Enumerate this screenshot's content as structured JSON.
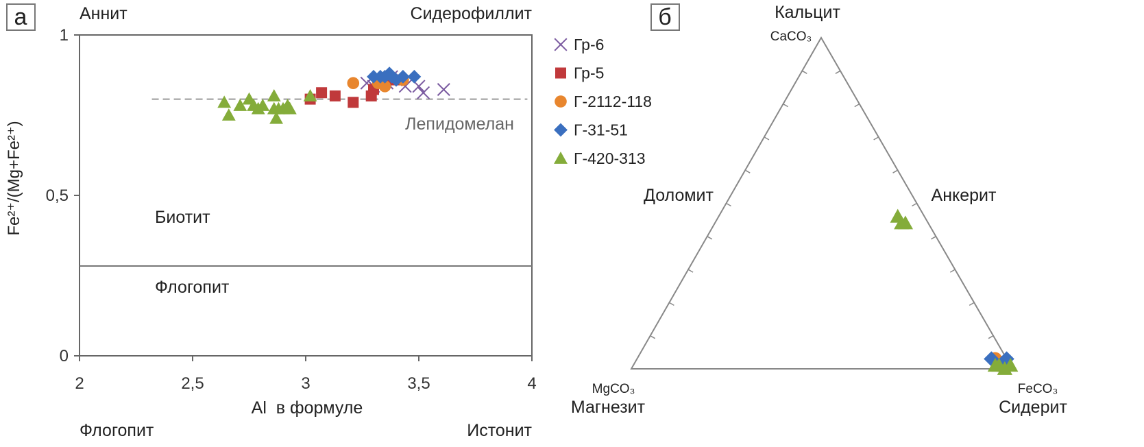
{
  "colors": {
    "gr6": "#7a5aa0",
    "gr5": "#c0393b",
    "g2112": "#e8862e",
    "g3151": "#3a6fbf",
    "g420": "#84ac3a",
    "axis": "#777777",
    "dashed": "#999999"
  },
  "panel_a": {
    "label": "а",
    "corner_top_left": "Аннит",
    "corner_top_right": "Сидерофиллит",
    "corner_bottom_left": "Флогопит",
    "corner_bottom_right": "Истонит",
    "field_lepidomelan": "Лепидомелан",
    "field_biotite": "Биотит",
    "field_phlogopite": "Флогопит"
  },
  "panel_b": {
    "label": "б",
    "top_name": "Кальцит",
    "top_formula": "CaCO₃",
    "left_formula": "MgCO₃",
    "left_name": "Магнезит",
    "right_formula": "FeCO₃",
    "right_name": "Сидерит",
    "side_left": "Доломит",
    "side_right": "Анкерит"
  },
  "legend": [
    {
      "name": "Гр-6",
      "marker": "x",
      "color_key": "gr6"
    },
    {
      "name": "Гр-5",
      "marker": "square",
      "color_key": "gr5"
    },
    {
      "name": "Г-2112-118",
      "marker": "circle",
      "color_key": "g2112"
    },
    {
      "name": "Г-31-51",
      "marker": "diamond",
      "color_key": "g3151"
    },
    {
      "name": "Г-420-313",
      "marker": "triangle",
      "color_key": "g420"
    }
  ],
  "chart_data": [
    {
      "type": "scatter",
      "xlabel": "Al  в формуле",
      "ylabel": "Fe²⁺/(Mg+Fe²⁺)",
      "xlim": [
        2,
        4
      ],
      "ylim": [
        0,
        1
      ],
      "x_ticks": [
        "2",
        "2,5",
        "3",
        "3,5",
        "4"
      ],
      "y_ticks": [
        "0",
        "0,5",
        "1"
      ],
      "reference_lines": [
        {
          "style": "dashed",
          "y": 0.8,
          "x_from": 2.32,
          "x_to": 3.98
        },
        {
          "style": "solid",
          "y": 0.28,
          "x_from": 2,
          "x_to": 4
        }
      ],
      "series": [
        {
          "name": "Гр-6",
          "marker": "x",
          "points": [
            [
              3.27,
              0.85
            ],
            [
              3.3,
              0.84
            ],
            [
              3.33,
              0.86
            ],
            [
              3.36,
              0.85
            ],
            [
              3.38,
              0.87
            ],
            [
              3.4,
              0.86
            ],
            [
              3.44,
              0.84
            ],
            [
              3.5,
              0.84
            ],
            [
              3.52,
              0.82
            ],
            [
              3.61,
              0.83
            ]
          ]
        },
        {
          "name": "Гр-5",
          "marker": "square",
          "points": [
            [
              3.02,
              0.8
            ],
            [
              3.07,
              0.82
            ],
            [
              3.13,
              0.81
            ],
            [
              3.21,
              0.79
            ],
            [
              3.29,
              0.81
            ],
            [
              3.3,
              0.83
            ],
            [
              3.37,
              0.86
            ],
            [
              3.41,
              0.86
            ]
          ]
        },
        {
          "name": "Г-2112-118",
          "marker": "circle",
          "points": [
            [
              3.21,
              0.85
            ],
            [
              3.32,
              0.85
            ],
            [
              3.35,
              0.84
            ],
            [
              3.43,
              0.86
            ]
          ]
        },
        {
          "name": "Г-31-51",
          "marker": "diamond",
          "points": [
            [
              3.3,
              0.87
            ],
            [
              3.33,
              0.87
            ],
            [
              3.35,
              0.87
            ],
            [
              3.37,
              0.88
            ],
            [
              3.38,
              0.87
            ],
            [
              3.4,
              0.86
            ],
            [
              3.43,
              0.87
            ],
            [
              3.48,
              0.87
            ]
          ]
        },
        {
          "name": "Г-420-313",
          "marker": "triangle",
          "points": [
            [
              2.64,
              0.79
            ],
            [
              2.66,
              0.75
            ],
            [
              2.71,
              0.78
            ],
            [
              2.75,
              0.8
            ],
            [
              2.77,
              0.78
            ],
            [
              2.79,
              0.77
            ],
            [
              2.81,
              0.78
            ],
            [
              2.86,
              0.81
            ],
            [
              2.86,
              0.77
            ],
            [
              2.87,
              0.74
            ],
            [
              2.88,
              0.77
            ],
            [
              2.9,
              0.77
            ],
            [
              2.92,
              0.78
            ],
            [
              2.93,
              0.77
            ],
            [
              3.02,
              0.81
            ]
          ]
        }
      ]
    },
    {
      "type": "scatter",
      "subtype": "ternary",
      "components": [
        "CaCO₃",
        "MgCO₃",
        "FeCO₃"
      ],
      "series": [
        {
          "name": "Гр-5",
          "marker": "square",
          "points": [
            [
              0.02,
              0.02,
              0.96
            ],
            [
              0.01,
              0.02,
              0.97
            ],
            [
              0.02,
              0.01,
              0.97
            ]
          ]
        },
        {
          "name": "Г-2112-118",
          "marker": "circle",
          "points": [
            [
              0.03,
              0.03,
              0.94
            ]
          ]
        },
        {
          "name": "Г-31-51",
          "marker": "diamond",
          "points": [
            [
              0.03,
              0.04,
              0.93
            ],
            [
              0.03,
              0.0,
              0.97
            ],
            [
              0.02,
              0.01,
              0.97
            ]
          ]
        },
        {
          "name": "Г-420-313",
          "marker": "triangle",
          "points": [
            [
              0.46,
              0.07,
              0.47
            ],
            [
              0.44,
              0.07,
              0.49
            ],
            [
              0.44,
              0.06,
              0.5
            ],
            [
              0.01,
              0.04,
              0.95
            ],
            [
              0.01,
              0.03,
              0.96
            ],
            [
              0.0,
              0.02,
              0.98
            ],
            [
              0.01,
              0.0,
              0.99
            ]
          ]
        }
      ]
    }
  ]
}
